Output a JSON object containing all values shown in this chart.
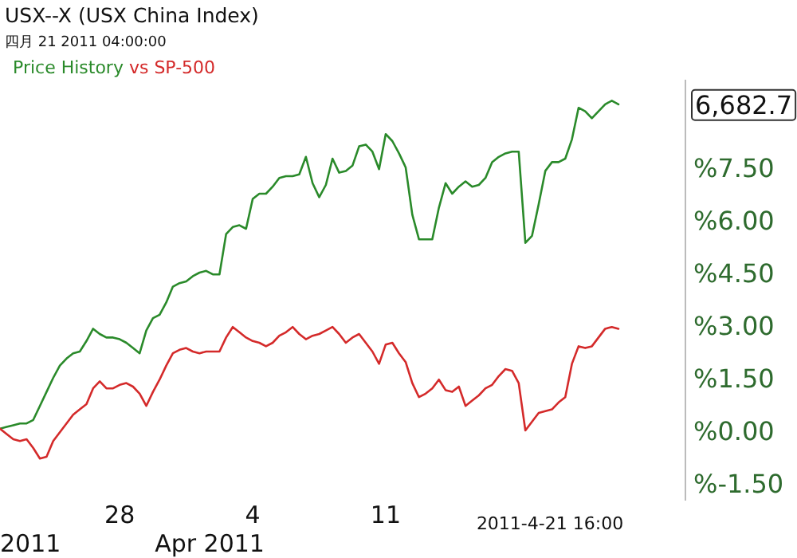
{
  "chart_data": {
    "type": "line",
    "title": "USX--X (USX China Index)",
    "subtitle": "四月 21 2011 04:00:00",
    "legend": "top left",
    "categories": [
      null,
      null,
      null,
      null,
      null,
      null,
      null,
      null,
      null,
      null,
      null,
      null,
      null,
      null,
      null,
      null,
      null,
      null,
      "28",
      null,
      null,
      null,
      null,
      null,
      null,
      null,
      null,
      null,
      null,
      null,
      null,
      null,
      null,
      null,
      null,
      null,
      null,
      null,
      "4",
      null,
      null,
      null,
      null,
      null,
      null,
      null,
      null,
      null,
      null,
      null,
      null,
      null,
      null,
      null,
      null,
      null,
      null,
      null,
      "11",
      null,
      null,
      null,
      null,
      null,
      null,
      null,
      null,
      null,
      null,
      null,
      null,
      null,
      null,
      null,
      null,
      null,
      null,
      null,
      null,
      null,
      null,
      null,
      null,
      null,
      null,
      null,
      null,
      null,
      null,
      null,
      null,
      null,
      null,
      null
    ],
    "series": [
      {
        "name": "Price History",
        "color": "#2a8a2a",
        "values": [
          0.05,
          0.1,
          0.15,
          0.2,
          0.2,
          0.3,
          0.7,
          1.1,
          1.5,
          1.85,
          2.05,
          2.2,
          2.25,
          2.55,
          2.9,
          2.75,
          2.65,
          2.65,
          2.6,
          2.5,
          2.35,
          2.2,
          2.85,
          3.2,
          3.3,
          3.65,
          4.1,
          4.2,
          4.25,
          4.4,
          4.5,
          4.55,
          4.45,
          4.45,
          5.6,
          5.8,
          5.85,
          5.75,
          6.6,
          6.75,
          6.75,
          6.95,
          7.2,
          7.25,
          7.25,
          7.3,
          7.8,
          7.05,
          6.65,
          7.0,
          7.75,
          7.35,
          7.4,
          7.55,
          8.1,
          8.15,
          7.95,
          7.45,
          8.45,
          8.25,
          7.9,
          7.5,
          6.15,
          5.45,
          5.45,
          5.45,
          6.35,
          7.05,
          6.75,
          6.95,
          7.1,
          6.95,
          7.0,
          7.2,
          7.65,
          7.8,
          7.9,
          7.95,
          7.95,
          5.35,
          5.55,
          6.45,
          7.4,
          7.65,
          7.65,
          7.75,
          8.3,
          9.2,
          9.1,
          8.9,
          9.1,
          9.3,
          9.4,
          9.3
        ]
      },
      {
        "name": "vs SP-500",
        "color": "#d42a2a",
        "values": [
          0.05,
          -0.1,
          -0.25,
          -0.3,
          -0.25,
          -0.5,
          -0.8,
          -0.75,
          -0.3,
          -0.05,
          0.2,
          0.45,
          0.6,
          0.75,
          1.2,
          1.4,
          1.2,
          1.2,
          1.3,
          1.35,
          1.25,
          1.05,
          0.7,
          1.1,
          1.45,
          1.85,
          2.2,
          2.3,
          2.35,
          2.25,
          2.2,
          2.25,
          2.25,
          2.25,
          2.65,
          2.95,
          2.8,
          2.65,
          2.55,
          2.5,
          2.4,
          2.5,
          2.7,
          2.8,
          2.95,
          2.75,
          2.6,
          2.7,
          2.75,
          2.85,
          2.95,
          2.75,
          2.5,
          2.65,
          2.75,
          2.5,
          2.25,
          1.9,
          2.45,
          2.5,
          2.2,
          1.95,
          1.35,
          0.95,
          1.05,
          1.2,
          1.45,
          1.15,
          1.1,
          1.25,
          0.7,
          0.85,
          1.0,
          1.2,
          1.3,
          1.55,
          1.75,
          1.7,
          1.35,
          0.0,
          0.25,
          0.5,
          0.55,
          0.6,
          0.8,
          0.95,
          1.9,
          2.4,
          2.35,
          2.4,
          2.65,
          2.9,
          2.95,
          2.9
        ]
      }
    ],
    "ylim": [
      -2,
      10
    ],
    "yticks": [
      {
        "value": -1.5,
        "label": "%-1.50"
      },
      {
        "value": 0,
        "label": "%0.00"
      },
      {
        "value": 1.5,
        "label": "%1.50"
      },
      {
        "value": 3,
        "label": "%3.00"
      },
      {
        "value": 4.5,
        "label": "%4.50"
      },
      {
        "value": 6,
        "label": "%6.00"
      },
      {
        "value": 7.5,
        "label": "%7.50"
      }
    ],
    "grid": false,
    "annotations": [
      "2011",
      "Apr 2011",
      "2011-4-21 16:00",
      "6,682.7"
    ]
  }
}
